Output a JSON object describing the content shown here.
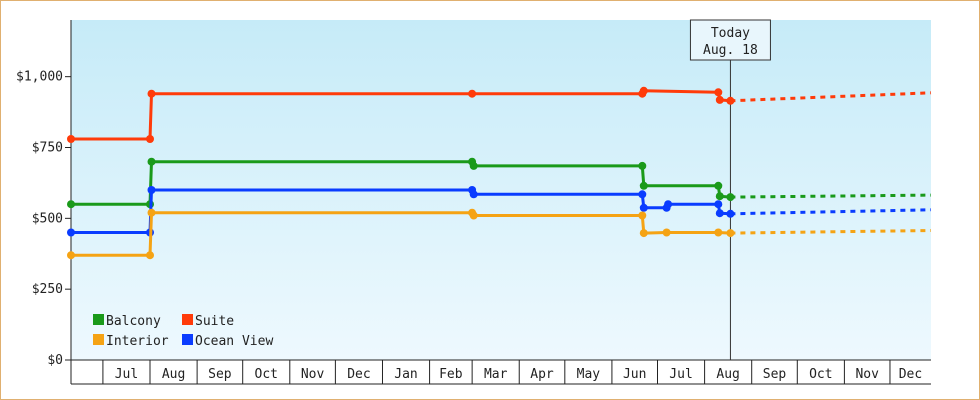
{
  "chart_data": {
    "type": "line",
    "title": "",
    "xlabel": "",
    "ylabel": "",
    "x_axis": {
      "type": "date",
      "range": [
        "2014-06-10",
        "2015-12-28"
      ],
      "tick_labels": [
        {
          "label": "Jul",
          "date": "2014-07-01"
        },
        {
          "label": "Aug",
          "date": "2014-08-01"
        },
        {
          "label": "Sep",
          "date": "2014-09-01"
        },
        {
          "label": "Oct",
          "date": "2014-10-01"
        },
        {
          "label": "Nov",
          "date": "2014-11-01"
        },
        {
          "label": "Dec",
          "date": "2014-12-01"
        },
        {
          "label": "Jan",
          "date": "2015-01-01"
        },
        {
          "label": "Feb",
          "date": "2015-02-01"
        },
        {
          "label": "Mar",
          "date": "2015-03-01"
        },
        {
          "label": "Apr",
          "date": "2015-04-01"
        },
        {
          "label": "May",
          "date": "2015-05-01"
        },
        {
          "label": "Jun",
          "date": "2015-06-01"
        },
        {
          "label": "Jul",
          "date": "2015-07-01"
        },
        {
          "label": "Aug",
          "date": "2015-08-01"
        },
        {
          "label": "Sep",
          "date": "2015-09-01"
        },
        {
          "label": "Oct",
          "date": "2015-10-01"
        },
        {
          "label": "Nov",
          "date": "2015-11-01"
        },
        {
          "label": "Dec",
          "date": "2015-12-01"
        }
      ]
    },
    "y_axis": {
      "range": [
        0,
        1200
      ],
      "ticks": [
        {
          "value": 0,
          "label": "$0"
        },
        {
          "value": 250,
          "label": "$250"
        },
        {
          "value": 500,
          "label": "$500"
        },
        {
          "value": 750,
          "label": "$750"
        },
        {
          "value": 1000,
          "label": "$1,000"
        }
      ]
    },
    "grid": false,
    "today_marker": {
      "date": "2015-08-18",
      "label_line1": "Today",
      "label_line2": "Aug. 18"
    },
    "legend": {
      "placement": "bottom-left",
      "entries": [
        {
          "name": "Balcony",
          "color": "#1a9a1a"
        },
        {
          "name": "Suite",
          "color": "#ff3b0a"
        },
        {
          "name": "Interior",
          "color": "#f5a314"
        },
        {
          "name": "Ocean View",
          "color": "#0a3cff"
        }
      ]
    },
    "series": [
      {
        "name": "Suite",
        "color": "#ff3b0a",
        "points": [
          [
            "2014-06-10",
            780
          ],
          [
            "2014-08-01",
            780
          ],
          [
            "2014-08-02",
            940
          ],
          [
            "2015-03-01",
            940
          ],
          [
            "2015-06-21",
            940
          ],
          [
            "2015-06-22",
            950
          ],
          [
            "2015-08-10",
            945
          ],
          [
            "2015-08-11",
            918
          ],
          [
            "2015-08-18",
            915
          ]
        ],
        "projection": [
          [
            "2015-08-18",
            915
          ],
          [
            "2015-12-28",
            943
          ]
        ]
      },
      {
        "name": "Balcony",
        "color": "#1a9a1a",
        "points": [
          [
            "2014-06-10",
            550
          ],
          [
            "2014-08-01",
            550
          ],
          [
            "2014-08-02",
            700
          ],
          [
            "2015-03-01",
            700
          ],
          [
            "2015-03-02",
            685
          ],
          [
            "2015-06-21",
            685
          ],
          [
            "2015-06-22",
            615
          ],
          [
            "2015-08-10",
            615
          ],
          [
            "2015-08-11",
            578
          ],
          [
            "2015-08-18",
            575
          ]
        ],
        "projection": [
          [
            "2015-08-18",
            575
          ],
          [
            "2015-12-28",
            582
          ]
        ]
      },
      {
        "name": "Ocean View",
        "color": "#0a3cff",
        "points": [
          [
            "2014-06-10",
            450
          ],
          [
            "2014-08-01",
            450
          ],
          [
            "2014-08-02",
            600
          ],
          [
            "2015-03-01",
            600
          ],
          [
            "2015-03-02",
            585
          ],
          [
            "2015-06-21",
            585
          ],
          [
            "2015-06-22",
            537
          ],
          [
            "2015-07-07",
            537
          ],
          [
            "2015-07-08",
            550
          ],
          [
            "2015-08-10",
            550
          ],
          [
            "2015-08-11",
            518
          ],
          [
            "2015-08-18",
            516
          ]
        ],
        "projection": [
          [
            "2015-08-18",
            516
          ],
          [
            "2015-12-28",
            530
          ]
        ]
      },
      {
        "name": "Interior",
        "color": "#f5a314",
        "points": [
          [
            "2014-06-10",
            370
          ],
          [
            "2014-08-01",
            370
          ],
          [
            "2014-08-02",
            520
          ],
          [
            "2015-03-01",
            520
          ],
          [
            "2015-03-02",
            510
          ],
          [
            "2015-06-21",
            510
          ],
          [
            "2015-06-22",
            448
          ],
          [
            "2015-07-07",
            450
          ],
          [
            "2015-08-10",
            450
          ],
          [
            "2015-08-18",
            448
          ]
        ],
        "projection": [
          [
            "2015-08-18",
            448
          ],
          [
            "2015-12-28",
            457
          ]
        ]
      }
    ]
  }
}
